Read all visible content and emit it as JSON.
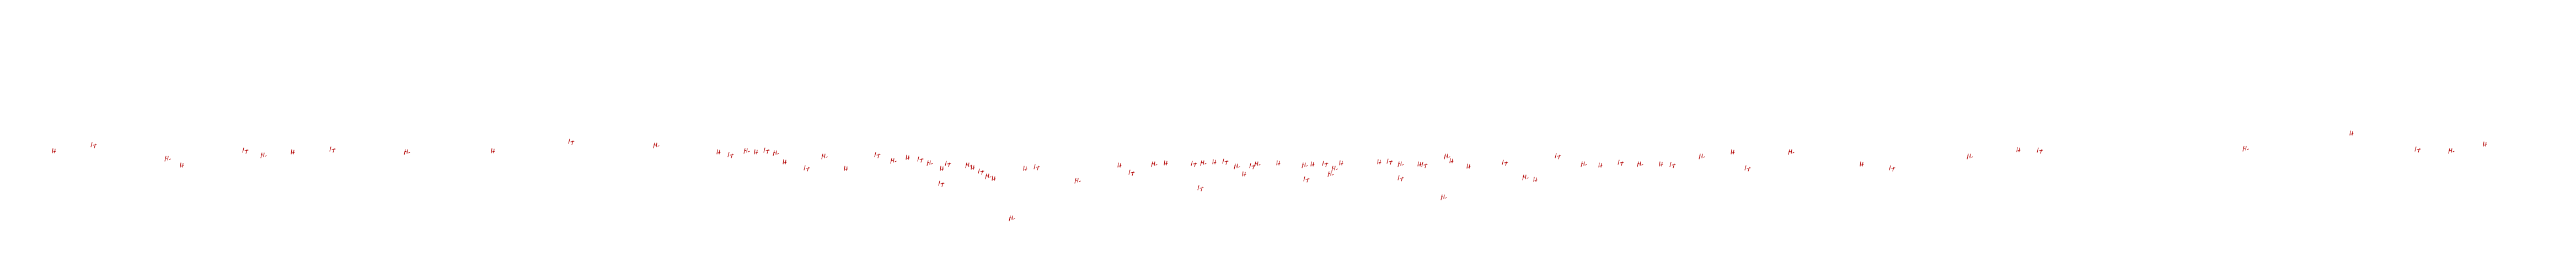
{
  "palette": {
    "background": "#ffffff",
    "mark_color": "#b30000"
  },
  "marks": [
    {
      "icon": "tally-mark-icon"
    },
    {
      "icon": "tally-mark-icon"
    },
    {
      "icon": "tally-mark-icon"
    },
    {
      "icon": "tally-mark-icon"
    },
    {
      "icon": "tally-mark-icon"
    },
    {
      "icon": "tally-mark-icon"
    },
    {
      "icon": "tally-mark-icon"
    },
    {
      "icon": "tally-mark-icon"
    },
    {
      "icon": "tally-mark-icon"
    },
    {
      "icon": "tally-mark-icon"
    },
    {
      "icon": "tally-mark-icon"
    },
    {
      "icon": "tally-mark-icon"
    },
    {
      "icon": "tally-mark-icon"
    },
    {
      "icon": "tally-mark-icon"
    },
    {
      "icon": "tally-mark-icon"
    },
    {
      "icon": "tally-mark-icon"
    },
    {
      "icon": "tally-mark-icon"
    },
    {
      "icon": "tally-mark-icon"
    },
    {
      "icon": "tally-mark-icon"
    },
    {
      "icon": "tally-mark-icon"
    },
    {
      "icon": "tally-mark-icon"
    },
    {
      "icon": "tally-mark-icon"
    },
    {
      "icon": "tally-mark-icon"
    },
    {
      "icon": "tally-mark-icon"
    },
    {
      "icon": "tally-mark-icon"
    },
    {
      "icon": "tally-mark-icon"
    },
    {
      "icon": "tally-mark-icon"
    },
    {
      "icon": "tally-mark-icon"
    },
    {
      "icon": "tally-mark-icon"
    },
    {
      "icon": "tally-mark-icon"
    },
    {
      "icon": "tally-mark-icon"
    },
    {
      "icon": "tally-mark-icon"
    },
    {
      "icon": "tally-mark-icon"
    },
    {
      "icon": "tally-mark-icon"
    },
    {
      "icon": "tally-mark-icon"
    },
    {
      "icon": "tally-mark-icon"
    },
    {
      "icon": "tally-mark-icon"
    },
    {
      "icon": "tally-mark-icon"
    },
    {
      "icon": "tally-mark-icon"
    },
    {
      "icon": "tally-mark-icon"
    },
    {
      "icon": "tally-mark-icon"
    },
    {
      "icon": "tally-mark-icon"
    },
    {
      "icon": "tally-mark-icon"
    },
    {
      "icon": "tally-mark-icon"
    },
    {
      "icon": "tally-mark-icon"
    },
    {
      "icon": "tally-mark-icon"
    },
    {
      "icon": "tally-mark-icon"
    },
    {
      "icon": "tally-mark-icon"
    },
    {
      "icon": "tally-mark-icon"
    },
    {
      "icon": "tally-mark-icon"
    },
    {
      "icon": "tally-mark-icon"
    },
    {
      "icon": "tally-mark-icon"
    },
    {
      "icon": "tally-mark-icon"
    },
    {
      "icon": "tally-mark-icon"
    },
    {
      "icon": "tally-mark-icon"
    },
    {
      "icon": "tally-mark-icon"
    },
    {
      "icon": "tally-mark-icon"
    },
    {
      "icon": "tally-mark-icon"
    },
    {
      "icon": "tally-mark-icon"
    },
    {
      "icon": "tally-mark-icon"
    },
    {
      "icon": "tally-mark-icon"
    },
    {
      "icon": "tally-mark-icon"
    },
    {
      "icon": "tally-mark-icon"
    },
    {
      "icon": "tally-mark-icon"
    },
    {
      "icon": "tally-mark-icon"
    },
    {
      "icon": "tally-mark-icon"
    },
    {
      "icon": "tally-mark-icon"
    },
    {
      "icon": "tally-mark-icon"
    },
    {
      "icon": "tally-mark-icon"
    },
    {
      "icon": "tally-mark-icon"
    },
    {
      "icon": "tally-mark-icon"
    },
    {
      "icon": "tally-mark-icon"
    },
    {
      "icon": "tally-mark-icon"
    },
    {
      "icon": "tally-mark-icon"
    },
    {
      "icon": "tally-mark-icon"
    },
    {
      "icon": "tally-mark-icon"
    },
    {
      "icon": "tally-mark-icon"
    },
    {
      "icon": "tally-mark-icon"
    },
    {
      "icon": "tally-mark-icon"
    },
    {
      "icon": "tally-mark-icon"
    },
    {
      "icon": "tally-mark-icon"
    },
    {
      "icon": "tally-mark-icon"
    },
    {
      "icon": "tally-mark-icon"
    },
    {
      "icon": "tally-mark-icon"
    },
    {
      "icon": "tally-mark-icon"
    },
    {
      "icon": "tally-mark-icon"
    },
    {
      "icon": "tally-mark-icon"
    },
    {
      "icon": "tally-mark-icon"
    },
    {
      "icon": "tally-mark-icon"
    },
    {
      "icon": "tally-mark-icon"
    },
    {
      "icon": "tally-mark-icon"
    },
    {
      "icon": "tally-mark-icon"
    },
    {
      "icon": "circle-mark-icon"
    },
    {
      "icon": "circle-mark-icon"
    }
  ]
}
